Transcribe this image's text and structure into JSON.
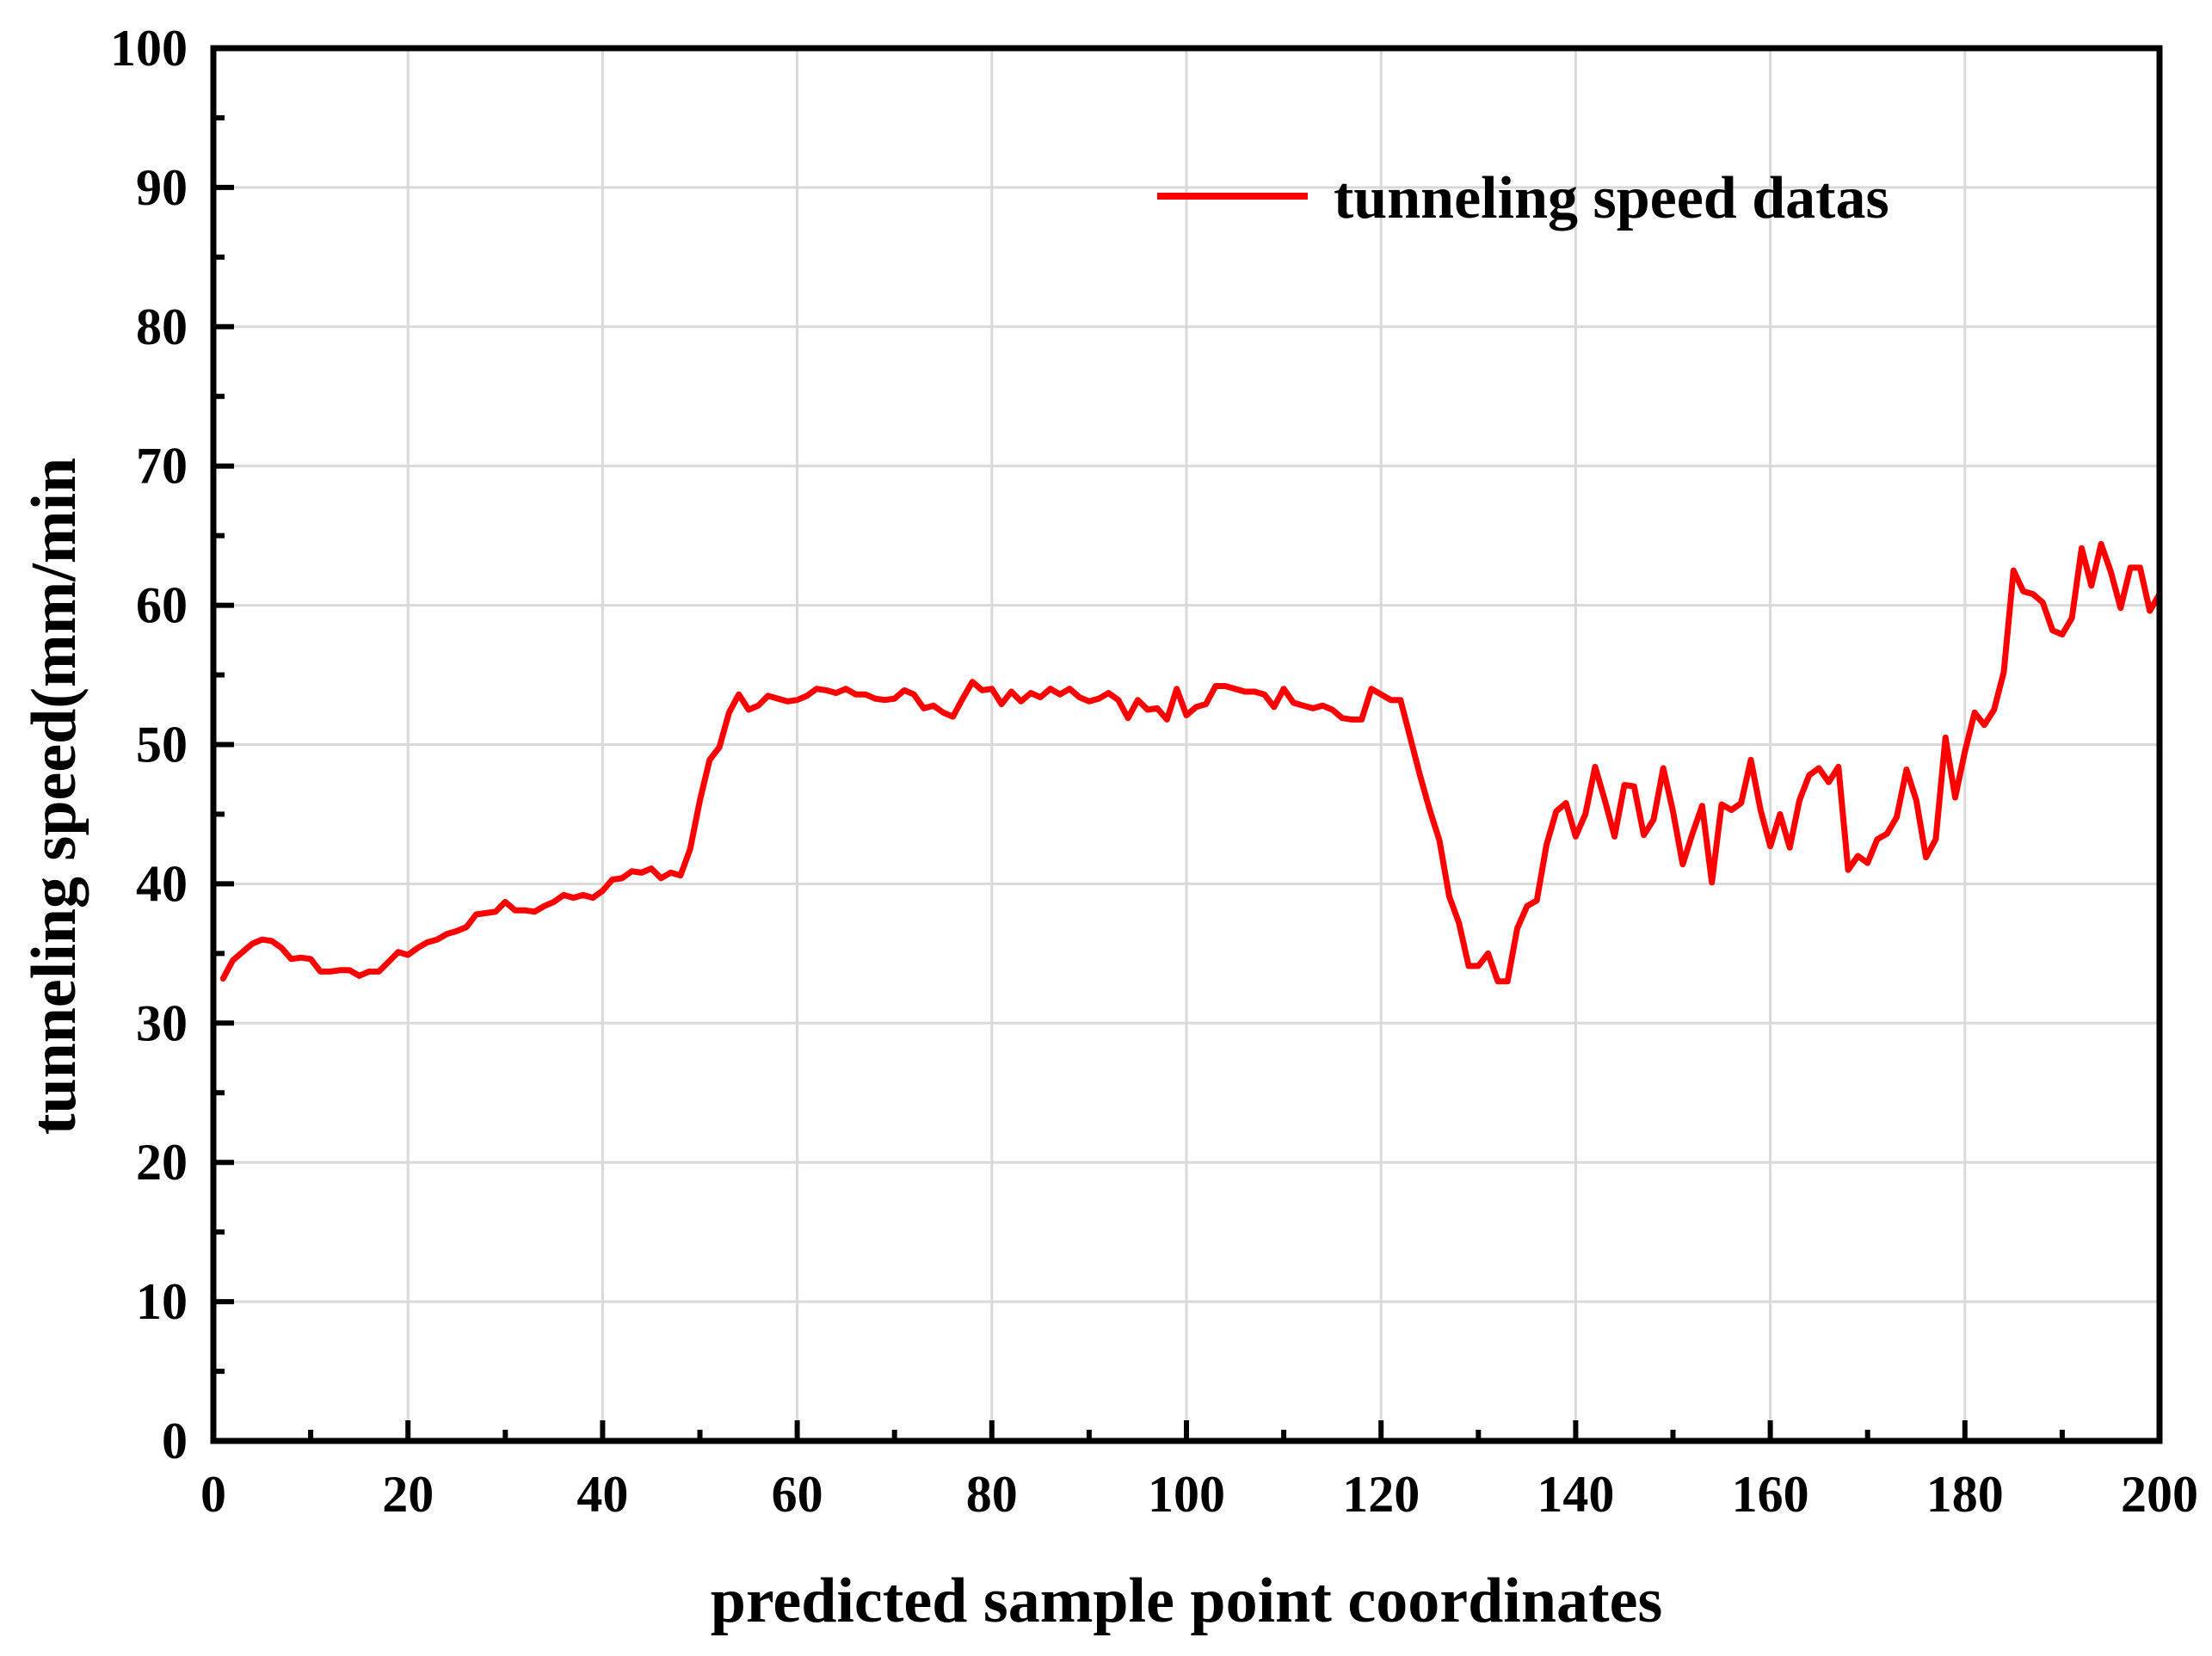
{
  "chart_data": {
    "type": "line",
    "title": "",
    "xlabel": "predicted sample point coordinates",
    "ylabel": "tunneling speed(mm/min",
    "xlim": [
      0,
      200
    ],
    "ylim": [
      0,
      100
    ],
    "x_ticks": [
      0,
      20,
      40,
      60,
      80,
      100,
      120,
      140,
      160,
      180,
      200
    ],
    "x_tick_labels": [
      "0",
      "20",
      "40",
      "60",
      "80",
      "100",
      "120",
      "140",
      "160",
      "180",
      "200"
    ],
    "y_ticks": [
      0,
      10,
      20,
      30,
      40,
      50,
      60,
      70,
      80,
      90,
      100
    ],
    "y_tick_labels": [
      "0",
      "10",
      "20",
      "30",
      "40",
      "50",
      "60",
      "70",
      "80",
      "90",
      "100"
    ],
    "grid": true,
    "legend_position": "top-right",
    "series": [
      {
        "name": "tunneling speed datas",
        "color": "#ff0000",
        "x": [
          1,
          2,
          3,
          4,
          5,
          6,
          7,
          8,
          9,
          10,
          11,
          12,
          13,
          14,
          15,
          16,
          17,
          18,
          19,
          20,
          21,
          22,
          23,
          24,
          25,
          26,
          27,
          28,
          29,
          30,
          31,
          32,
          33,
          34,
          35,
          36,
          37,
          38,
          39,
          40,
          41,
          42,
          43,
          44,
          45,
          46,
          47,
          48,
          49,
          50,
          51,
          52,
          53,
          54,
          55,
          56,
          57,
          58,
          59,
          60,
          61,
          62,
          63,
          64,
          65,
          66,
          67,
          68,
          69,
          70,
          71,
          72,
          73,
          74,
          75,
          76,
          77,
          78,
          79,
          80,
          81,
          82,
          83,
          84,
          85,
          86,
          87,
          88,
          89,
          90,
          91,
          92,
          93,
          94,
          95,
          96,
          97,
          98,
          99,
          100,
          101,
          102,
          103,
          104,
          105,
          106,
          107,
          108,
          109,
          110,
          111,
          112,
          113,
          114,
          115,
          116,
          117,
          118,
          119,
          120,
          121,
          122,
          123,
          124,
          125,
          126,
          127,
          128,
          129,
          130,
          131,
          132,
          133,
          134,
          135,
          136,
          137,
          138,
          139,
          140,
          141,
          142,
          143,
          144,
          145,
          146,
          147,
          148,
          149,
          150,
          151,
          152,
          153,
          154,
          155,
          156,
          157,
          158,
          159,
          160,
          161,
          162,
          163,
          164,
          165,
          166,
          167,
          168,
          169,
          170,
          171,
          172,
          173,
          174,
          175,
          176,
          177,
          178,
          179,
          180,
          181,
          182,
          183,
          184,
          185,
          186,
          187,
          188,
          189,
          190,
          191,
          192,
          193,
          194,
          195,
          196,
          197,
          198,
          199,
          200
        ],
        "y": [
          33.2,
          34.5,
          35.1,
          35.7,
          36.0,
          35.9,
          35.4,
          34.6,
          34.7,
          34.6,
          33.7,
          33.7,
          33.8,
          33.8,
          33.4,
          33.7,
          33.7,
          34.4,
          35.1,
          34.9,
          35.4,
          35.8,
          36.0,
          36.4,
          36.6,
          36.9,
          37.8,
          37.9,
          38.0,
          38.7,
          38.1,
          38.1,
          38.0,
          38.4,
          38.7,
          39.2,
          39.0,
          39.2,
          39.0,
          39.5,
          40.3,
          40.4,
          40.9,
          40.8,
          41.1,
          40.4,
          40.8,
          40.6,
          42.5,
          46.0,
          48.9,
          49.8,
          52.3,
          53.6,
          52.5,
          52.8,
          53.5,
          53.3,
          53.1,
          53.2,
          53.5,
          54.0,
          53.9,
          53.7,
          54.0,
          53.6,
          53.6,
          53.3,
          53.2,
          53.3,
          53.9,
          53.6,
          52.6,
          52.8,
          52.3,
          52.0,
          53.3,
          54.5,
          53.9,
          54.0,
          52.9,
          53.8,
          53.1,
          53.7,
          53.4,
          54.0,
          53.6,
          54.0,
          53.4,
          53.1,
          53.3,
          53.7,
          53.2,
          51.9,
          53.2,
          52.5,
          52.6,
          51.8,
          54.0,
          52.1,
          52.7,
          52.9,
          54.2,
          54.2,
          54.0,
          53.8,
          53.8,
          53.6,
          52.7,
          54.0,
          53.0,
          52.8,
          52.6,
          52.8,
          52.5,
          51.9,
          51.8,
          51.8,
          54.0,
          53.6,
          53.2,
          53.2,
          50.5,
          47.8,
          45.3,
          43.1,
          39.1,
          37.2,
          34.1,
          34.1,
          35.0,
          33.0,
          33.0,
          36.8,
          38.4,
          38.8,
          42.8,
          45.2,
          45.8,
          43.4,
          45.0,
          48.4,
          46.0,
          43.4,
          47.1,
          47.0,
          43.5,
          44.6,
          48.3,
          45.2,
          41.4,
          43.6,
          45.6,
          40.1,
          45.7,
          45.3,
          45.8,
          48.9,
          45.3,
          42.7,
          45.0,
          42.6,
          46.0,
          47.8,
          48.3,
          47.3,
          48.4,
          41.0,
          42.0,
          41.5,
          43.2,
          43.6,
          44.8,
          48.2,
          46.0,
          41.9,
          43.2,
          50.5,
          46.2,
          49.5,
          52.3,
          51.4,
          52.5,
          55.2,
          62.5,
          61.0,
          60.8,
          60.2,
          58.2,
          57.9,
          59.1,
          64.1,
          61.4,
          64.4,
          62.4,
          59.8,
          62.7,
          62.7,
          59.6,
          60.8
        ]
      }
    ]
  }
}
